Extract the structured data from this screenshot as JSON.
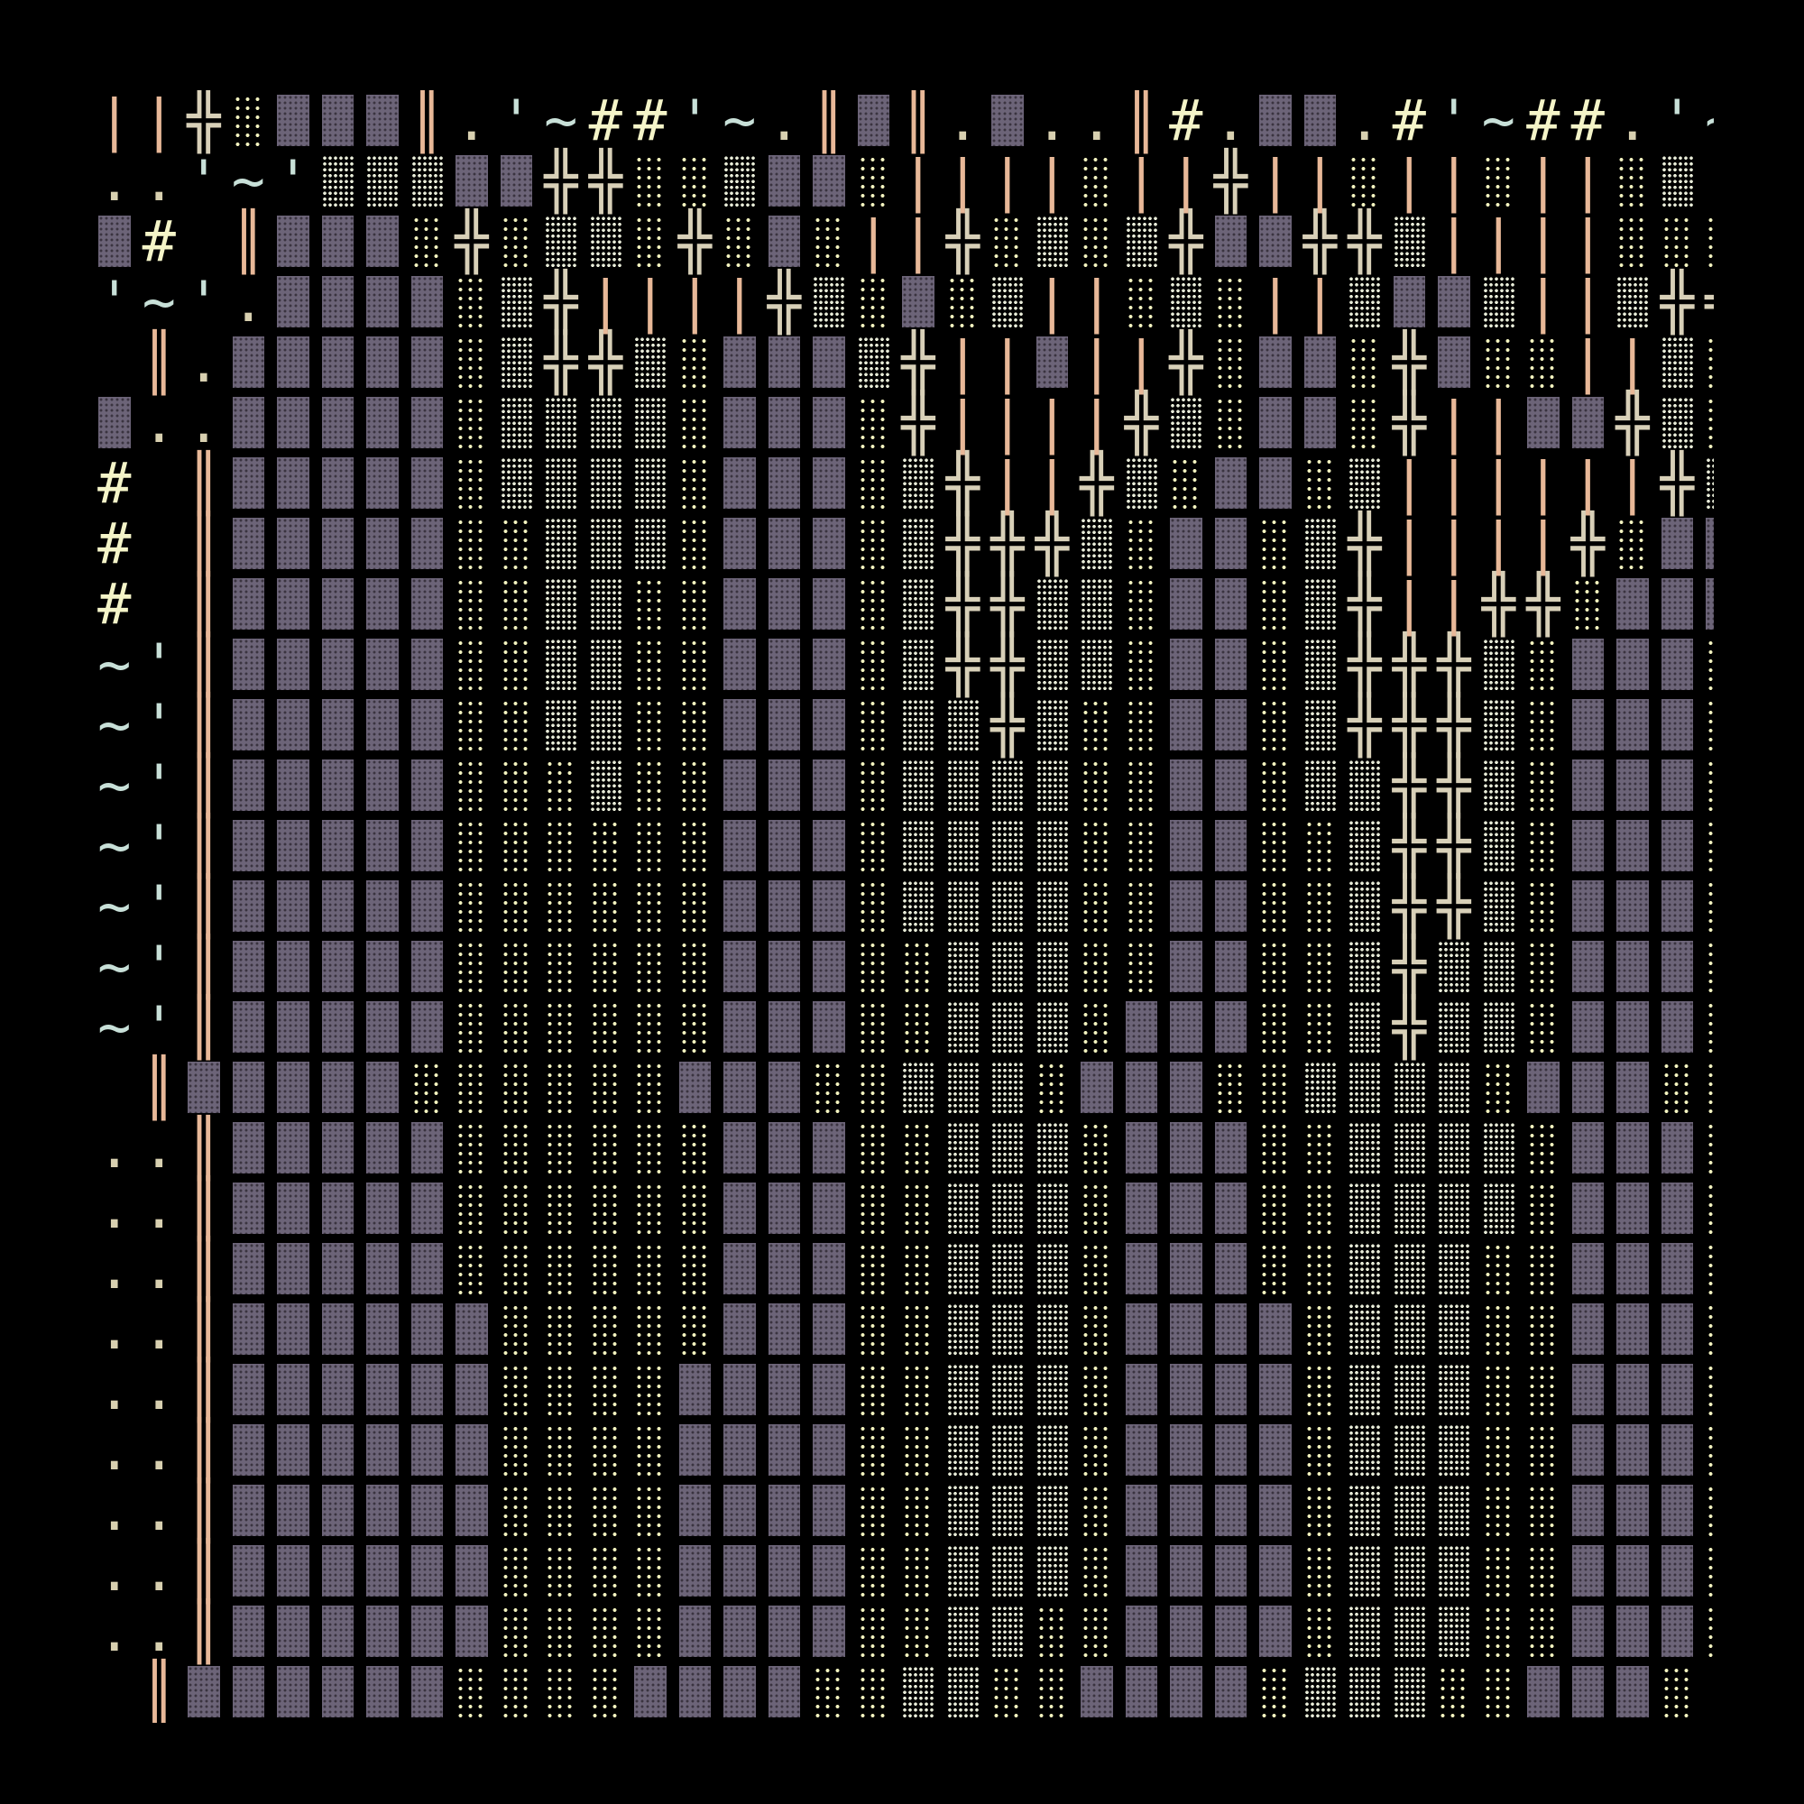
{
  "art": {
    "rows": [
      "||╬░▓▓▓║.'~##'~.║▓║.▓..║#.▓▓.#'~##.'~'║▓║#.",
      "..'~'▒▒▒▓▓╬╬░░▒▓▓░||||░||╬||░||░||░▒||▒▒╬||▓▒╬|",
      "▓# ║▓▓▓░╬░▒▒░╬░▓░||╬░▒░▒╬▓▓╬╬▒||||░░░▓▒░░",
      "'~'.▓▓▓▓░▒╬||||╬▒░▓░▒||░▒░||▒▓▓▒||▒╬╬░╬░▓░╬░",
      " ║.▓▓▓▓▓░▒╬╬▒░▓▓▓▒╬||▓||╬░▓▓░╬▓░░||▒░▓░▒▓",
      "▓..▓▓▓▓▓░▒▒▒▒░▓▓▓░╬||||╬▒░▓▓░╬||▓▓╬▒░▓░▒|",
      "# ║▓▓▓▓▓░▒▒▒▒░▓▓▓░▒╬||╬▒░▓▓░▒||||||╬▒▓▓▓▒:",
      "# ║▓▓▓▓▓░░▒▒▒░▓▓▓░▒╬╬╬▒░▓▓░▒╬||||╬░▓▓▓▒:",
      "# ║▓▓▓▓▓░░▒▒░░▓▓▓░▒╬╬▒▒░▓▓░▒╬||╬╬░▓▓▓░:",
      "~'║▓▓▓▓▓░░▒▒░░▓▓▓░▒╬╬▒▒░▓▓░▒╬╬╬▒░▓▓▓░:",
      "~'║▓▓▓▓▓░░▒▒░░▓▓▓░▒▒╬▒░░▓▓░▒╬╬╬▒░▓▓▓░░",
      "~'║▓▓▓▓▓░░░▒░░▓▓▓░▒▒▒▒░░▓▓░▒▒╬╬▒░▓▓▓░░",
      "~'║▓▓▓▓▓░░░░░░▓▓▓░▒▒▒▒░░▓▓░░▒╬╬▒░▓▓▓░░",
      "~'║▓▓▓▓▓░░░░░░▓▓▓░▒▒▒▒░░▓▓░░▒╬╬▒░▓▓▓░░",
      "~'║▓▓▓▓▓░░░░░░▓▓▓░░▒▒▒░░▓▓░░▒╬▒▒░▓▓▓░░",
      "~'║▓▓▓▓▓░░░░░░▓▓▓░░▒▒▒░▓▓▓░░▒╬▒▒░▓▓▓░░",
      " ║▓▓▓▓▓░░░░░░▓▓▓░░▒▒▒░▓▓▓░░▒▒▒▒░▓▓▓░░",
      "..║▓▓▓▓▓░░░░░░▓▓▓░░▒▒▒░▓▓▓░░▒▒▒▒░▓▓▓░░",
      "..║▓▓▓▓▓░░░░░░▓▓▓░░▒▒▒░▓▓▓░░▒▒▒▒░▓▓▓░░",
      "..║▓▓▓▓▓░░░░░░▓▓▓░░▒▒▒░▓▓▓░░▒▒▒░░▓▓▓░░",
      "..║▓▓▓▓▓▓░░░░░▓▓▓░░▒▒▒░▓▓▓▓░▒▒▒░░▓▓▓░░",
      "..║▓▓▓▓▓▓░░░░▓▓▓▓░░▒▒▒░▓▓▓▓░▒▒▒░░▓▓▓░░",
      "..║▓▓▓▓▓▓░░░░▓▓▓▓░░▒▒▒░▓▓▓▓░▒▒▒░░▓▓▓░░",
      "..║▓▓▓▓▓▓░░░░▓▓▓▓░░▒▒▒░▓▓▓▓░▒▒▒░░▓▓▓░░",
      "..║▓▓▓▓▓▓░░░░▓▓▓▓░░▒▒▒░▓▓▓▓░▒▒▒░░▓▓▓░░",
      "..║▓▓▓▓▓▓░░░░▓▓▓▓░░▒▒░░▓▓▓▓░▒▒▒░░▓▓▓░░",
      " ║▓▓▓▓▓▓░░░░▓▓▓▓░░▒▒░░▓▓▓▓░▒▒▒░░▓▓▓░:"
    ]
  },
  "colors": {
    "background": "#000000",
    "dark_shade": "#6c6478",
    "dots": "#f0f0d0",
    "cross": "#d8d0b8",
    "bars": "#e8b898",
    "hash": "#f4f4c8",
    "tilde": "#c8e0d8",
    "dotdot": "#d8d0b0"
  }
}
